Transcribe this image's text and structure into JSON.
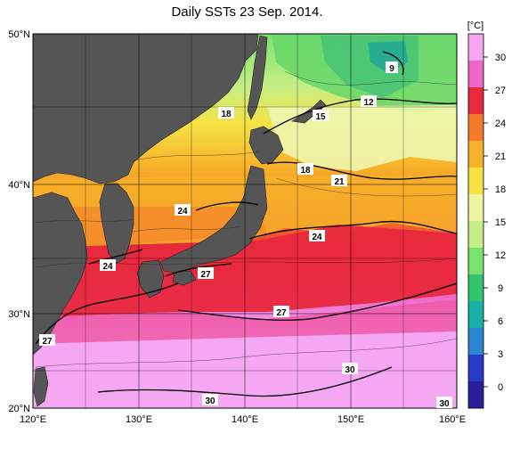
{
  "title": "Daily SSTs 23 Sep. 2014.",
  "colorbar": {
    "unit": "[°C]",
    "ticks": [
      "30",
      "27",
      "24",
      "21",
      "18",
      "15",
      "12",
      "9",
      "6",
      "3",
      "0"
    ],
    "colors_top_to_bottom": [
      "#f6a6f2",
      "#ee66c8",
      "#e8283c",
      "#f57a2a",
      "#f7b02a",
      "#f6e244",
      "#ecf6a0",
      "#c6ee86",
      "#7ae26c",
      "#32c46e",
      "#1ab2a8",
      "#2a86d2",
      "#2a3ac8",
      "#2a1e9c"
    ]
  },
  "axes": {
    "lat_labels": [
      "50°N",
      "40°N",
      "30°N",
      "20°N"
    ],
    "lon_labels": [
      "120°E",
      "130°E",
      "140°E",
      "150°E",
      "160°E"
    ]
  },
  "contour_labels": [
    "9",
    "12",
    "15",
    "18",
    "18",
    "21",
    "24",
    "24",
    "24",
    "27",
    "27",
    "27",
    "30",
    "30",
    "30"
  ],
  "colors": {
    "land": "#555555",
    "grid": "#000000"
  }
}
